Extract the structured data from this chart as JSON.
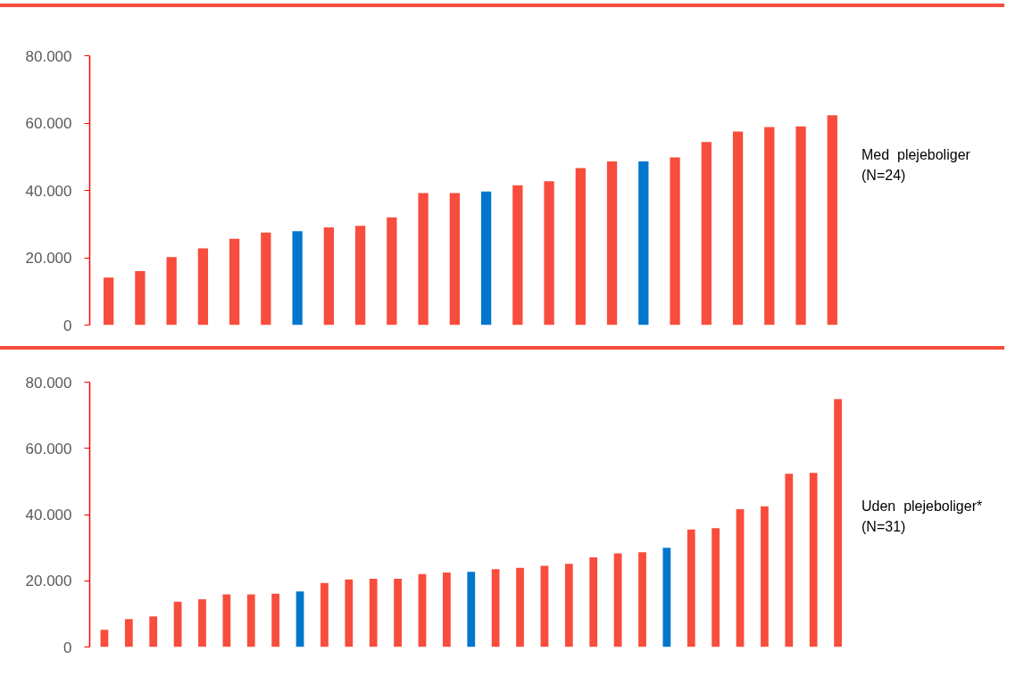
{
  "chart_data": [
    {
      "type": "bar",
      "categories": [
        null,
        null,
        null,
        null,
        null,
        null,
        null,
        null,
        null,
        null,
        null,
        null,
        null,
        null,
        null,
        null,
        null,
        null,
        null,
        null,
        null,
        null,
        null,
        null
      ],
      "values": [
        14100,
        16000,
        20200,
        22800,
        25600,
        27500,
        27900,
        29000,
        29500,
        32000,
        39200,
        39200,
        39700,
        41500,
        42700,
        46600,
        48600,
        48600,
        49800,
        54400,
        57500,
        58800,
        59000,
        62300
      ],
      "colors": [
        "#f84c3c",
        "#f84c3c",
        "#f84c3c",
        "#f84c3c",
        "#f84c3c",
        "#f84c3c",
        "#0077cc",
        "#f84c3c",
        "#f84c3c",
        "#f84c3c",
        "#f84c3c",
        "#f84c3c",
        "#0077cc",
        "#f84c3c",
        "#f84c3c",
        "#f84c3c",
        "#f84c3c",
        "#0077cc",
        "#f84c3c",
        "#f84c3c",
        "#f84c3c",
        "#f84c3c",
        "#f84c3c",
        "#f84c3c"
      ],
      "ylim": [
        0,
        80000
      ],
      "yticks": [
        {
          "value": 0,
          "label": "0"
        },
        {
          "value": 20000,
          "label": "20.000"
        },
        {
          "value": 40000,
          "label": "40.000"
        },
        {
          "value": 60000,
          "label": "60.000"
        },
        {
          "value": 80000,
          "label": "80.000"
        }
      ],
      "grid": false,
      "tick_labels": "y",
      "annotations": [
        "Med  plejeboliger\n(N=24)"
      ]
    },
    {
      "type": "bar",
      "categories": [
        null,
        null,
        null,
        null,
        null,
        null,
        null,
        null,
        null,
        null,
        null,
        null,
        null,
        null,
        null,
        null,
        null,
        null,
        null,
        null,
        null,
        null,
        null,
        null,
        null,
        null,
        null,
        null,
        null,
        null,
        null
      ],
      "values": [
        5200,
        8400,
        9200,
        13700,
        14400,
        15900,
        15900,
        16100,
        16800,
        19300,
        20400,
        20600,
        20600,
        22000,
        22500,
        22700,
        23500,
        23900,
        24500,
        25100,
        27100,
        28300,
        28600,
        30000,
        35500,
        35900,
        41600,
        42500,
        52300,
        52600,
        74900
      ],
      "colors": [
        "#f84c3c",
        "#f84c3c",
        "#f84c3c",
        "#f84c3c",
        "#f84c3c",
        "#f84c3c",
        "#f84c3c",
        "#f84c3c",
        "#0077cc",
        "#f84c3c",
        "#f84c3c",
        "#f84c3c",
        "#f84c3c",
        "#f84c3c",
        "#f84c3c",
        "#0077cc",
        "#f84c3c",
        "#f84c3c",
        "#f84c3c",
        "#f84c3c",
        "#f84c3c",
        "#f84c3c",
        "#f84c3c",
        "#0077cc",
        "#f84c3c",
        "#f84c3c",
        "#f84c3c",
        "#f84c3c",
        "#f84c3c",
        "#f84c3c",
        "#f84c3c"
      ],
      "ylim": [
        0,
        80000
      ],
      "yticks": [
        {
          "value": 0,
          "label": "0"
        },
        {
          "value": 20000,
          "label": "20.000"
        },
        {
          "value": 40000,
          "label": "40.000"
        },
        {
          "value": 60000,
          "label": "60.000"
        },
        {
          "value": 80000,
          "label": "80.000"
        }
      ],
      "grid": false,
      "tick_labels": "y",
      "annotations": [
        "Uden  plejeboliger*\n(N=31)"
      ]
    }
  ]
}
